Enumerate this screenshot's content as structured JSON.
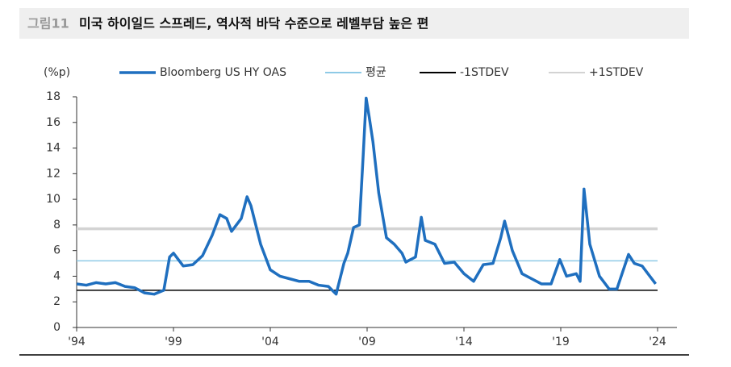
{
  "chart_data": {
    "type": "line",
    "figure_label": "그림11",
    "title": "미국 하이일드 스프레드, 역사적 바닥 수준으로 레벨부담 높은 편",
    "y_unit": "(%p)",
    "xlim": [
      1994,
      2025
    ],
    "xticks": [
      {
        "value": 1994,
        "label": "'94"
      },
      {
        "value": 1999,
        "label": "'99"
      },
      {
        "value": 2004,
        "label": "'04"
      },
      {
        "value": 2009,
        "label": "'09"
      },
      {
        "value": 2014,
        "label": "'14"
      },
      {
        "value": 2019,
        "label": "'19"
      },
      {
        "value": 2024,
        "label": "'24"
      }
    ],
    "ylim": [
      0,
      18
    ],
    "yticks": [
      0,
      2,
      4,
      6,
      8,
      10,
      12,
      14,
      16,
      18
    ],
    "x": [
      1994.0,
      1994.5,
      1995.0,
      1995.5,
      1996.0,
      1996.5,
      1997.0,
      1997.5,
      1998.0,
      1998.5,
      1998.8,
      1999.0,
      1999.5,
      2000.0,
      2000.5,
      2001.0,
      2001.4,
      2001.75,
      2002.0,
      2002.5,
      2002.8,
      2003.0,
      2003.5,
      2004.0,
      2004.5,
      2005.0,
      2005.5,
      2006.0,
      2006.5,
      2007.0,
      2007.4,
      2007.8,
      2008.0,
      2008.3,
      2008.6,
      2008.8,
      2008.95,
      2009.1,
      2009.3,
      2009.6,
      2010.0,
      2010.4,
      2010.8,
      2011.0,
      2011.5,
      2011.8,
      2012.0,
      2012.5,
      2013.0,
      2013.5,
      2014.0,
      2014.5,
      2015.0,
      2015.5,
      2015.9,
      2016.1,
      2016.5,
      2017.0,
      2017.5,
      2018.0,
      2018.5,
      2018.95,
      2019.3,
      2019.8,
      2020.0,
      2020.2,
      2020.5,
      2021.0,
      2021.5,
      2021.9,
      2022.5,
      2022.8,
      2023.2,
      2023.6,
      2023.9
    ],
    "series": [
      {
        "name": "Bloomberg US HY OAS",
        "color": "#1f6fbf",
        "values": [
          3.4,
          3.3,
          3.5,
          3.4,
          3.5,
          3.2,
          3.1,
          2.7,
          2.6,
          2.9,
          5.5,
          5.8,
          4.8,
          4.9,
          5.6,
          7.2,
          8.8,
          8.5,
          7.5,
          8.5,
          10.2,
          9.5,
          6.5,
          4.5,
          4.0,
          3.8,
          3.6,
          3.6,
          3.3,
          3.2,
          2.6,
          5.0,
          5.8,
          7.8,
          8.0,
          13.5,
          17.9,
          16.5,
          14.5,
          10.5,
          7.0,
          6.5,
          5.8,
          5.1,
          5.5,
          8.6,
          6.8,
          6.5,
          5.0,
          5.1,
          4.2,
          3.6,
          4.9,
          5.0,
          7.0,
          8.3,
          6.0,
          4.2,
          3.8,
          3.4,
          3.4,
          5.3,
          4.0,
          4.2,
          3.6,
          10.8,
          6.5,
          4.0,
          3.0,
          3.0,
          5.7,
          5.0,
          4.8,
          4.0,
          3.4
        ]
      }
    ],
    "reference_lines": [
      {
        "name": "평균",
        "color": "#8ecae6",
        "value": 5.2
      },
      {
        "name": "-1STDEV",
        "color": "#000000",
        "value": 2.9
      },
      {
        "name": "+1STDEV",
        "color": "#d3d3d3",
        "value": 7.7
      }
    ]
  }
}
